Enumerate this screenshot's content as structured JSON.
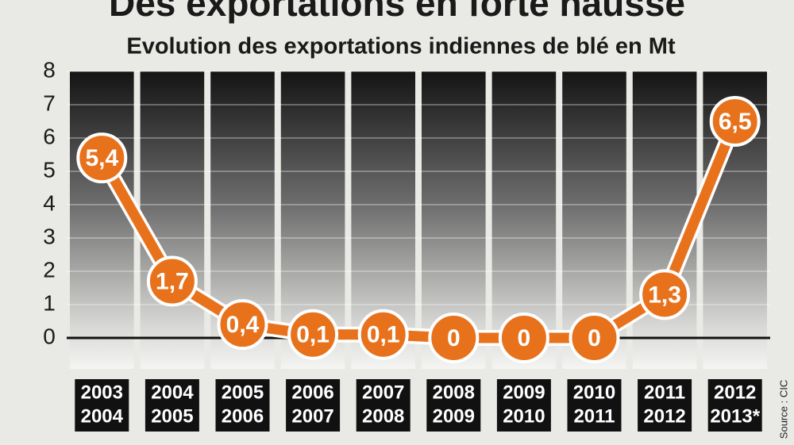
{
  "chart_data": {
    "type": "line",
    "title": "Des exportations en forte hausse",
    "subtitle": "Evolution des exportations indiennes de blé en Mt",
    "source": "Source : CIC",
    "categories": [
      [
        "2003",
        "2004"
      ],
      [
        "2004",
        "2005"
      ],
      [
        "2005",
        "2006"
      ],
      [
        "2006",
        "2007"
      ],
      [
        "2007",
        "2008"
      ],
      [
        "2008",
        "2009"
      ],
      [
        "2009",
        "2010"
      ],
      [
        "2010",
        "2011"
      ],
      [
        "2011",
        "2012"
      ],
      [
        "2012",
        "2013*"
      ]
    ],
    "values": [
      5.4,
      1.7,
      0.4,
      0.1,
      0.1,
      0,
      0,
      0,
      1.3,
      6.5
    ],
    "value_labels": [
      "5,4",
      "1,7",
      "0,4",
      "0,1",
      "0,1",
      "0",
      "0",
      "0",
      "1,3",
      "6,5"
    ],
    "color": "#e8721c",
    "ylim": [
      -0.93,
      8
    ],
    "yticks": [
      0,
      1,
      2,
      3,
      4,
      5,
      6,
      7,
      8
    ]
  }
}
